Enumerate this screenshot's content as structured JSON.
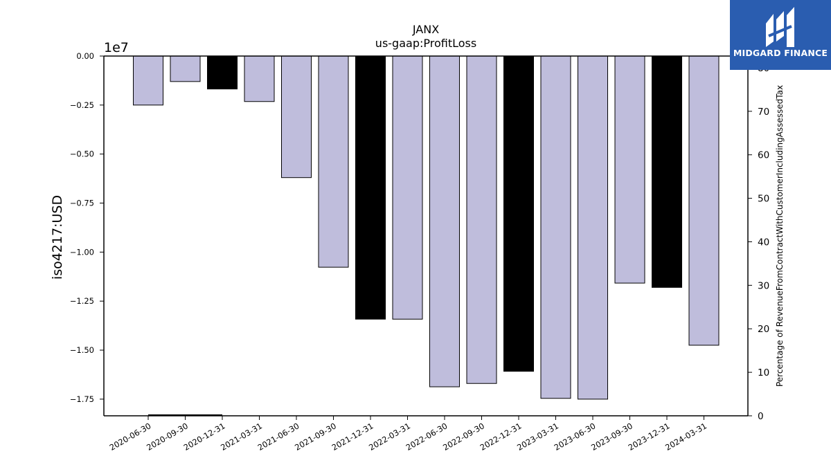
{
  "brand": {
    "name": "MIDGARD FINANCE",
    "icon": "midgard-logo-icon",
    "background": "#2a5db0"
  },
  "chart_data": {
    "type": "bar",
    "title": "JANX",
    "subtitle": "us-gaap:ProfitLoss",
    "ylabel": "iso4217:USD",
    "y_offset_label": "1e7",
    "y2label": "Percentage of RevenueFromContractWithCustomerIncludingAssessedTax",
    "categories": [
      "2020-06-30",
      "2020-09-30",
      "2020-12-31",
      "2021-03-31",
      "2021-06-30",
      "2021-09-30",
      "2021-12-31",
      "2022-03-31",
      "2022-06-30",
      "2022-09-30",
      "2022-12-31",
      "2023-03-31",
      "2023-06-30",
      "2023-09-30",
      "2023-12-31",
      "2024-03-31"
    ],
    "values": [
      -2500000,
      -1300000,
      -1680000,
      -2320000,
      -6200000,
      -10770000,
      -13420000,
      -13420000,
      -16870000,
      -16700000,
      -16080000,
      -17460000,
      -17500000,
      -11580000,
      -11800000,
      -14750000
    ],
    "bar_colors": [
      "#bfbddc",
      "#bfbddc",
      "#000000",
      "#bfbddc",
      "#bfbddc",
      "#bfbddc",
      "#000000",
      "#bfbddc",
      "#bfbddc",
      "#bfbddc",
      "#000000",
      "#bfbddc",
      "#bfbddc",
      "#bfbddc",
      "#000000",
      "#bfbddc"
    ],
    "ylim": [
      -18350000,
      0
    ],
    "yticks": [
      0,
      -2500000,
      -5000000,
      -7500000,
      -10000000,
      -12500000,
      -15000000,
      -17500000
    ],
    "ytick_labels": [
      "0.00",
      "−0.25",
      "−0.50",
      "−0.75",
      "−1.00",
      "−1.25",
      "−1.50",
      "−1.75"
    ],
    "y2lim": [
      0,
      82.7
    ],
    "y2ticks": [
      0,
      10,
      20,
      30,
      40,
      50,
      60,
      70,
      80
    ],
    "y2tick_labels": [
      "0",
      "10",
      "20",
      "30",
      "40",
      "50",
      "60",
      "70",
      "80"
    ],
    "secondary_series": {
      "x_range": [
        "2020-06-30",
        "2020-12-31"
      ],
      "values": [
        0.15,
        0.15
      ],
      "color": "#000000"
    },
    "grid": false,
    "legend": "none"
  }
}
